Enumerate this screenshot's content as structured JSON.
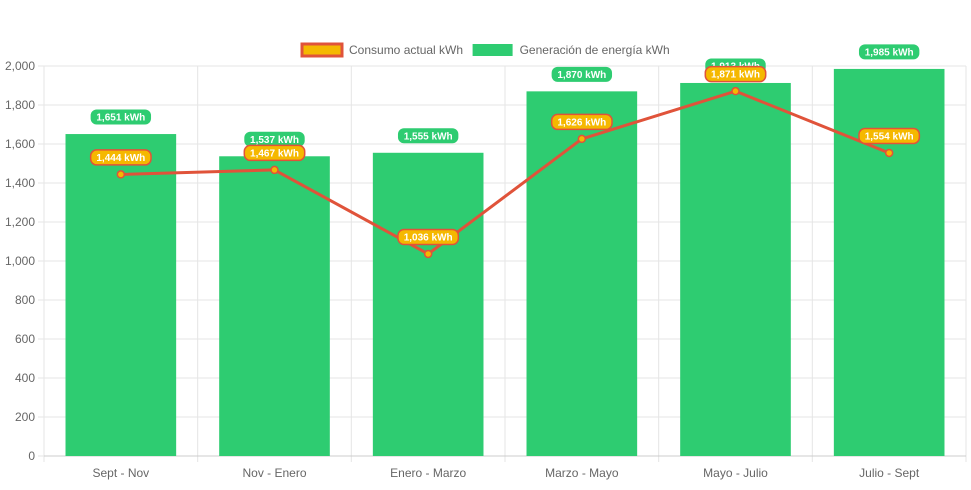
{
  "chart_data": {
    "type": "bar",
    "title": "",
    "xlabel": "",
    "ylabel": "",
    "categories": [
      "Sept - Nov",
      "Nov - Enero",
      "Enero - Marzo",
      "Marzo - Mayo",
      "Mayo - Julio",
      "Julio - Sept"
    ],
    "ylim": [
      0,
      2000
    ],
    "y_ticks": [
      0,
      200,
      400,
      600,
      800,
      1000,
      1200,
      1400,
      1600,
      1800,
      2000
    ],
    "y_tick_labels": [
      "0",
      "200",
      "400",
      "600",
      "800",
      "1,000",
      "1,200",
      "1,400",
      "1,600",
      "1,800",
      "2,000"
    ],
    "grid": true,
    "legend_position": "top",
    "series": [
      {
        "name": "Consumo actual kWh",
        "type": "line",
        "values": [
          1444,
          1467,
          1036,
          1626,
          1871,
          1554
        ],
        "labels": [
          "1,444 kWh",
          "1,467 kWh",
          "1,036 kWh",
          "1,626 kWh",
          "1,871 kWh",
          "1,554 kWh"
        ],
        "color": "#e0533a",
        "fill": "#f5b800",
        "label_bg": "#f5b800",
        "label_border": "#e0533a"
      },
      {
        "name": "Generación de energía kWh",
        "type": "bar",
        "values": [
          1651,
          1537,
          1555,
          1870,
          1913,
          1985
        ],
        "labels": [
          "1,651 kWh",
          "1,537 kWh",
          "1,555 kWh",
          "1,870 kWh",
          "1,913 kWh",
          "1,985 kWh"
        ],
        "color": "#2ecc71",
        "label_bg": "#2ecc71"
      }
    ]
  }
}
